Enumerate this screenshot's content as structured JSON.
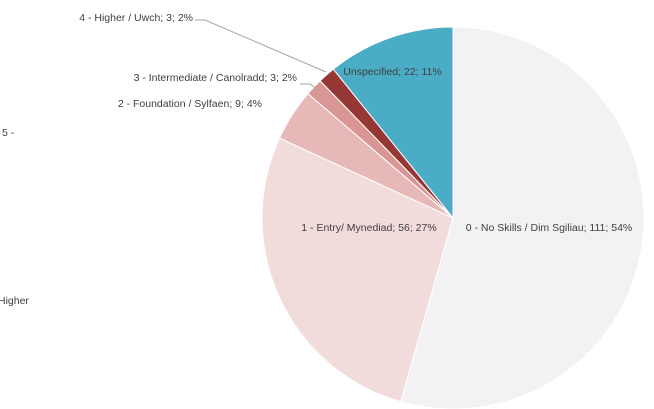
{
  "chart_data": {
    "type": "pie",
    "values": [
      111,
      56,
      9,
      3,
      3,
      22
    ],
    "value_labels": [
      "0 - No Skills / Dim Sgiliau; 111; 54%",
      "1 - Entry/ Mynediad; 56; 27%",
      "2 - Foundation / Sylfaen; 9; 4%",
      "3 - Intermediate / Canolradd; 3; 2%",
      "4 - Higher / Uwch; 3; 2%",
      "Unspecified; 22; 11%"
    ],
    "colors": [
      "#f2f2f2",
      "#f2dcdb",
      "#e6b9b8",
      "#d99694",
      "#953735",
      "#4bacc6"
    ],
    "start_angle": 0,
    "direction": "clockwise",
    "annotations": [
      "5 -",
      "Higher"
    ]
  }
}
